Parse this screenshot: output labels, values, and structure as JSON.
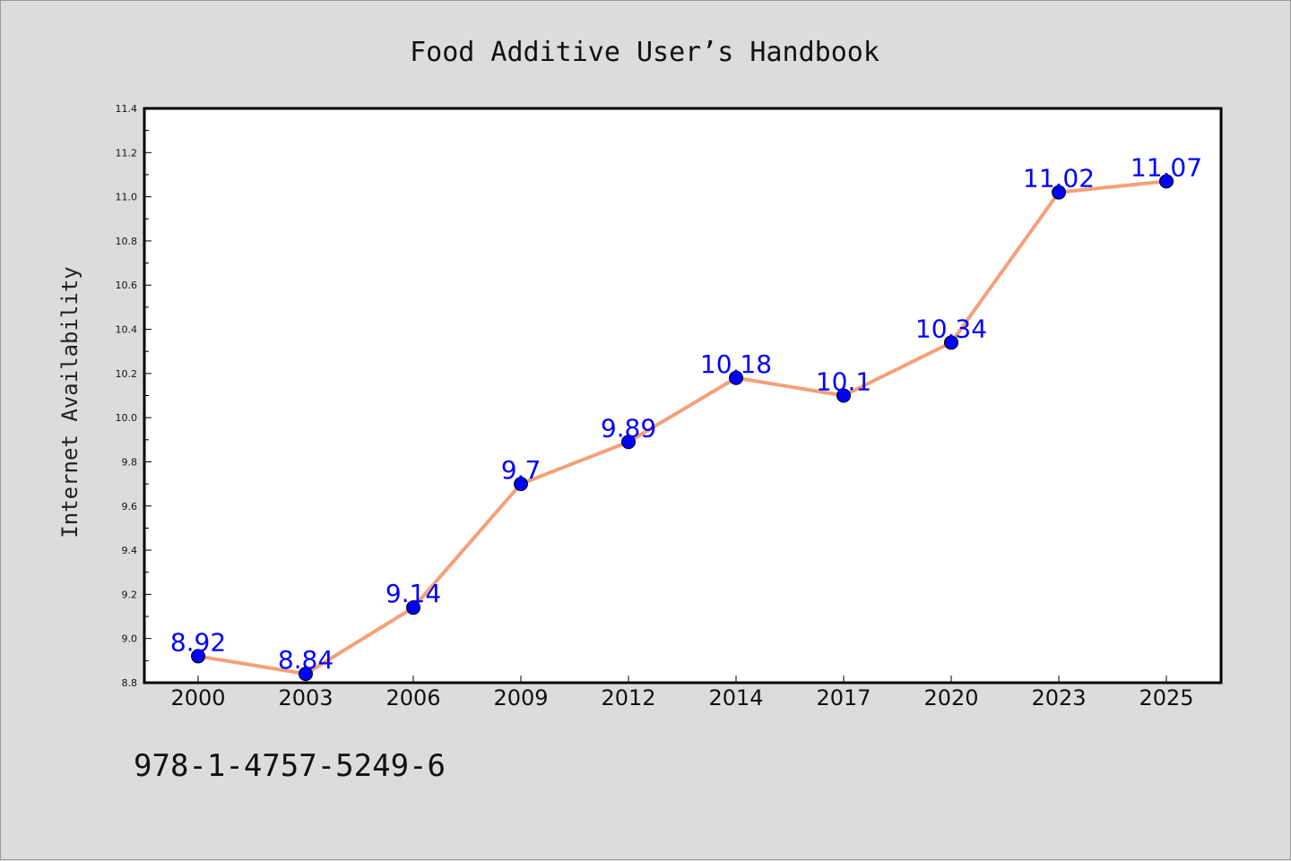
{
  "chart_data": {
    "type": "line",
    "title": "Food Additive User’s Handbook",
    "xlabel": "",
    "ylabel": "Internet Availability",
    "categories": [
      "2000",
      "2003",
      "2006",
      "2009",
      "2012",
      "2014",
      "2017",
      "2020",
      "2023",
      "2025"
    ],
    "series": [
      {
        "values": [
          8.92,
          8.84,
          9.14,
          9.7,
          9.89,
          10.18,
          10.1,
          10.34,
          11.02,
          11.07
        ],
        "labels": [
          "8.92",
          "8.84",
          "9.14",
          "9.7",
          "9.89",
          "10.18",
          "10.1",
          "10.34",
          "11.02",
          "11.07"
        ]
      }
    ],
    "ylim": [
      8.8,
      11.4
    ],
    "yticks": [
      "8.8",
      "9.0",
      "9.2",
      "9.4",
      "9.6",
      "9.8",
      "10.0",
      "10.2",
      "10.4",
      "10.6",
      "10.8",
      "11.0",
      "11.2",
      "11.4"
    ],
    "grid": false,
    "legend": "none",
    "colors": {
      "line": "#f4a07a",
      "marker": "#0000ff",
      "data_label": "#0000ff",
      "plot_background": "#ffffff",
      "figure_background": "#dcdcdc"
    }
  },
  "footer": {
    "isbn": "978-1-4757-5249-6"
  }
}
